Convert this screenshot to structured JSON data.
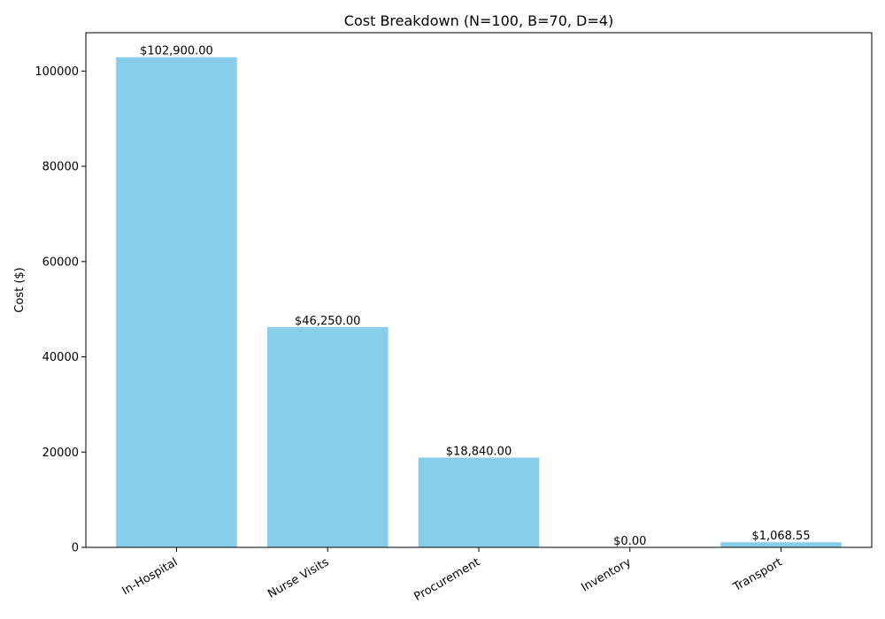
{
  "chart_data": {
    "type": "bar",
    "title": "Cost Breakdown (N=100, B=70, D=4)",
    "xlabel": "",
    "ylabel": "Cost ($)",
    "categories": [
      "In-Hospital",
      "Nurse Visits",
      "Procurement",
      "Inventory",
      "Transport"
    ],
    "values": [
      102900.0,
      46250.0,
      18840.0,
      0.0,
      1068.55
    ],
    "data_labels": [
      "$102,900.00",
      "$46,250.00",
      "$18,840.00",
      "$0.00",
      "$1,068.55"
    ],
    "ylim": [
      0,
      108045
    ],
    "yticks": [
      0,
      20000,
      40000,
      60000,
      80000,
      100000
    ],
    "ytick_labels": [
      "0",
      "20000",
      "40000",
      "60000",
      "80000",
      "100000"
    ],
    "bar_color": "#87CEEB",
    "grid": false,
    "legend": "none"
  }
}
